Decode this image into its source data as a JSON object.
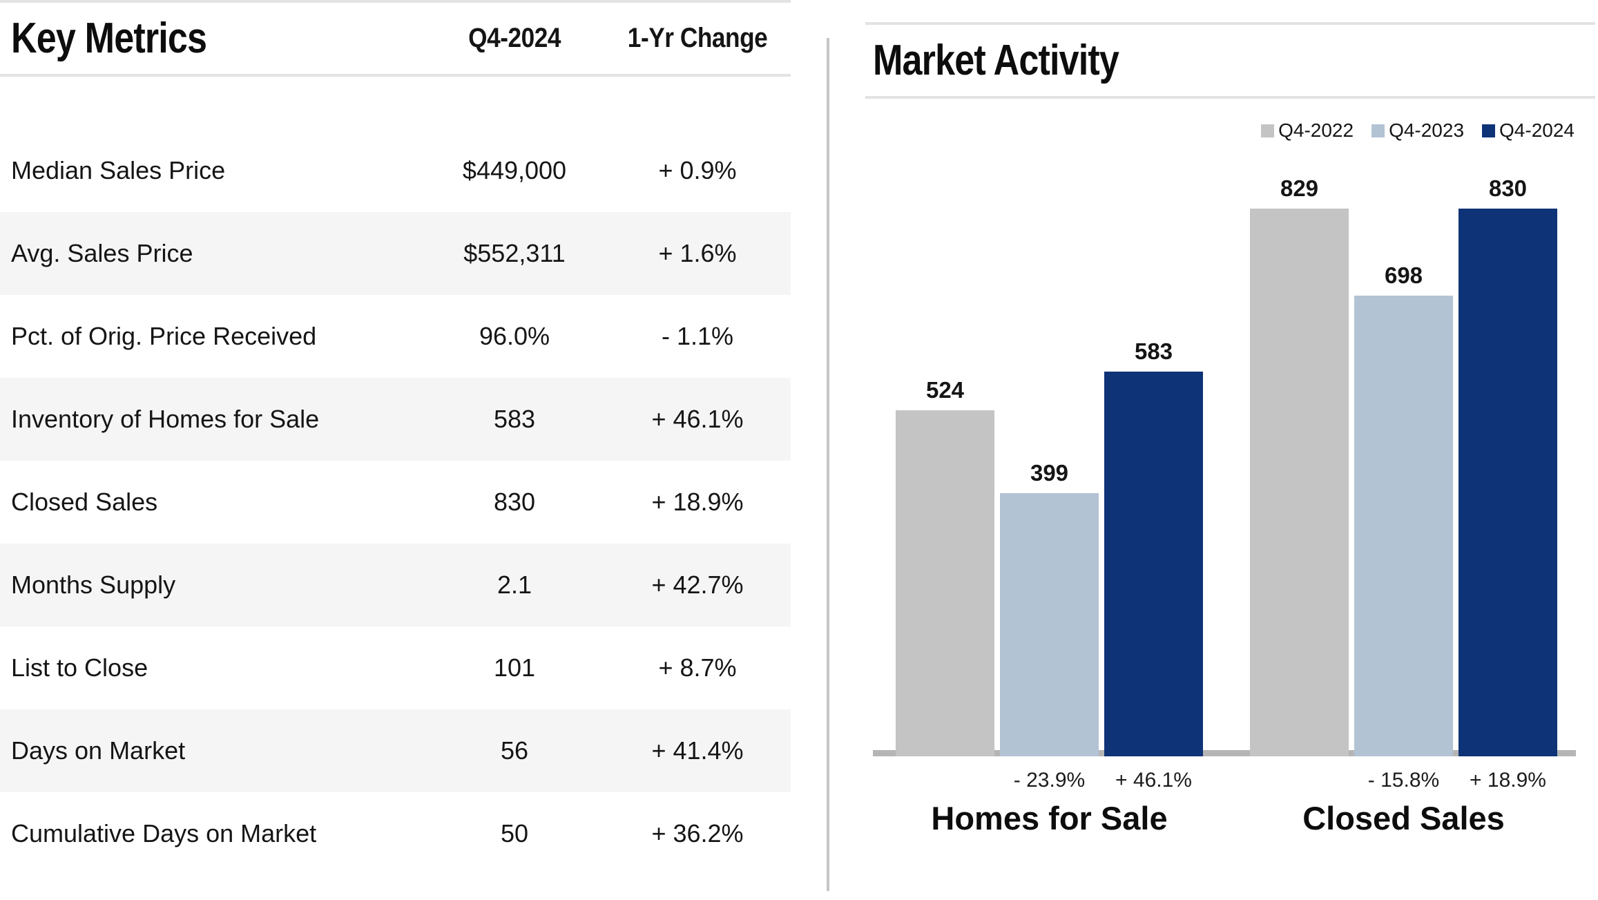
{
  "key_metrics": {
    "title": "Key Metrics",
    "columns": {
      "value": "Q4-2024",
      "change": "1-Yr Change"
    },
    "rows": [
      {
        "label": "Median Sales Price",
        "value": "$449,000",
        "change": "+ 0.9%"
      },
      {
        "label": "Avg. Sales Price",
        "value": "$552,311",
        "change": "+ 1.6%"
      },
      {
        "label": "Pct. of Orig. Price Received",
        "value": "96.0%",
        "change": "- 1.1%"
      },
      {
        "label": "Inventory of Homes for Sale",
        "value": "583",
        "change": "+ 46.1%"
      },
      {
        "label": "Closed Sales",
        "value": "830",
        "change": "+ 18.9%"
      },
      {
        "label": "Months Supply",
        "value": "2.1",
        "change": "+ 42.7%"
      },
      {
        "label": "List to Close",
        "value": "101",
        "change": "+ 8.7%"
      },
      {
        "label": "Days on Market",
        "value": "56",
        "change": "+ 41.4%"
      },
      {
        "label": "Cumulative Days on Market",
        "value": "50",
        "change": "+ 36.2%"
      }
    ]
  },
  "market_activity": {
    "title": "Market Activity"
  },
  "chart_data": {
    "type": "bar",
    "title": "Market Activity",
    "categories": [
      "Homes for Sale",
      "Closed Sales"
    ],
    "series": [
      {
        "name": "Q4-2022",
        "color": "#c4c4c4",
        "values": [
          524,
          829
        ]
      },
      {
        "name": "Q4-2023",
        "color": "#b2c3d4",
        "values": [
          399,
          698
        ],
        "pct_change_labels": [
          "- 23.9%",
          "- 15.8%"
        ]
      },
      {
        "name": "Q4-2024",
        "color": "#0e3377",
        "values": [
          583,
          830
        ],
        "pct_change_labels": [
          "+ 46.1%",
          "+ 18.9%"
        ]
      }
    ],
    "ylim": [
      0,
      870
    ],
    "grid": false,
    "legend_position": "top-right",
    "value_labels": "above-bars"
  },
  "colors": {
    "panel_border": "#e3e3e3",
    "row_stripe": "#f5f5f5",
    "divider": "#c6c6c6",
    "axis_baseline": "#b5b5b5",
    "text": "#151515"
  }
}
